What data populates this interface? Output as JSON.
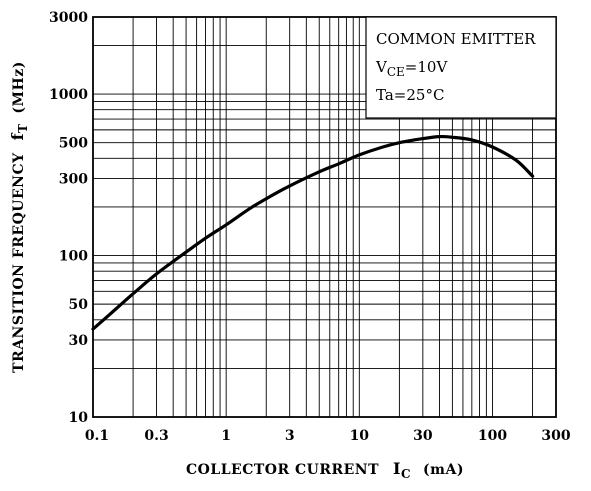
{
  "chart_data": {
    "type": "line",
    "x_scale": "log",
    "y_scale": "log",
    "xlim": [
      0.1,
      300
    ],
    "ylim": [
      10,
      3000
    ],
    "x_ticks": [
      "0.1",
      "0.3",
      "1",
      "3",
      "10",
      "30",
      "100",
      "300"
    ],
    "x_tick_values": [
      0.1,
      0.3,
      1,
      3,
      10,
      30,
      100,
      300
    ],
    "y_ticks": [
      "10",
      "30",
      "50",
      "100",
      "300",
      "500",
      "1000",
      "3000"
    ],
    "y_tick_values": [
      10,
      30,
      50,
      100,
      300,
      500,
      1000,
      3000
    ],
    "xlabel": {
      "main": "COLLECTOR CURRENT",
      "symbol": "I",
      "sub": "C",
      "unit": "(mA)"
    },
    "ylabel": {
      "main": "TRANSITION FREQUENCY",
      "symbol": "f",
      "sub": "T",
      "unit": "(MHz)"
    },
    "annotation": {
      "line1": "COMMON EMITTER",
      "line2_main": "V",
      "line2_sub": "CE",
      "line2_rest": "=10V",
      "line3": "Ta=25°C"
    },
    "grid": true,
    "series": [
      {
        "x": [
          0.1,
          0.15,
          0.2,
          0.3,
          0.5,
          0.7,
          1,
          1.5,
          2,
          3,
          5,
          7,
          10,
          15,
          20,
          30,
          40,
          50,
          70,
          100,
          150,
          200
        ],
        "y": [
          35,
          47,
          58,
          77,
          105,
          128,
          155,
          195,
          225,
          270,
          330,
          370,
          420,
          470,
          500,
          530,
          545,
          540,
          520,
          470,
          390,
          310
        ]
      }
    ]
  }
}
